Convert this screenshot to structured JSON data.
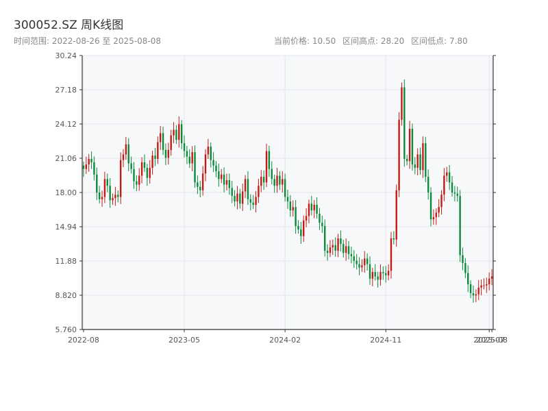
{
  "header": {
    "title": "300052.SZ 周K线图",
    "range_label": "时间范围: 2022-08-26 至 2025-08-08",
    "current_price": "当前价格: 10.50",
    "range_high": "区间高点: 28.20",
    "range_low": "区间低点: 7.80"
  },
  "colors": {
    "up": "#c41a16",
    "down": "#0b8a3b",
    "grid": "#e3e6ea",
    "plot_bg": "#f7f8fa",
    "axis": "#333333"
  },
  "chart_data": {
    "type": "candlestick",
    "title": "300052.SZ 周K线图",
    "xlabel": "",
    "ylabel": "",
    "ylim": [
      5.76,
      30.24
    ],
    "y_ticks": [
      "30.24",
      "27.18",
      "24.12",
      "21.06",
      "18.00",
      "14.94",
      "11.88",
      "8.820",
      "5.760"
    ],
    "x_ticks": [
      {
        "label": "2022-08",
        "index": 0
      },
      {
        "label": "2023-05",
        "index": 38
      },
      {
        "label": "2024-02",
        "index": 76
      },
      {
        "label": "2024-11",
        "index": 114
      },
      {
        "label": "2025-07",
        "index": 153
      },
      {
        "label": "2025-08",
        "index": 154
      }
    ],
    "x_count": 155,
    "grid": true,
    "closes": [
      20.1,
      20.5,
      21.0,
      20.7,
      19.6,
      18.0,
      17.4,
      17.6,
      19.2,
      18.6,
      17.3,
      17.5,
      17.8,
      17.6,
      20.9,
      21.4,
      22.3,
      20.6,
      20.1,
      19.0,
      18.7,
      19.5,
      20.7,
      20.2,
      19.3,
      20.2,
      21.3,
      21.0,
      22.5,
      23.3,
      21.8,
      21.1,
      21.8,
      23.1,
      23.6,
      22.7,
      24.1,
      22.4,
      21.7,
      21.2,
      20.6,
      21.6,
      18.9,
      18.5,
      18.2,
      19.7,
      21.4,
      22.1,
      20.9,
      20.4,
      19.9,
      19.2,
      19.6,
      18.7,
      19.1,
      18.4,
      17.7,
      17.2,
      17.9,
      17.0,
      18.1,
      19.2,
      17.4,
      17.1,
      16.9,
      17.6,
      18.6,
      19.4,
      18.9,
      21.7,
      20.1,
      19.2,
      18.6,
      19.5,
      18.7,
      19.2,
      17.6,
      17.2,
      16.4,
      16.7,
      15.0,
      14.7,
      14.1,
      15.5,
      15.9,
      17.0,
      16.4,
      16.9,
      16.1,
      15.3,
      15.0,
      12.8,
      12.6,
      13.1,
      13.3,
      12.8,
      13.9,
      13.4,
      12.6,
      13.2,
      12.5,
      12.3,
      11.9,
      11.6,
      11.3,
      11.5,
      12.1,
      11.6,
      10.3,
      10.9,
      10.5,
      10.2,
      10.9,
      10.8,
      10.6,
      11.0,
      13.9,
      13.8,
      18.2,
      24.5,
      27.4,
      21.0,
      20.8,
      23.7,
      20.5,
      20.2,
      21.4,
      20.0,
      22.4,
      19.4,
      18.0,
      15.6,
      15.8,
      16.2,
      16.7,
      17.8,
      19.5,
      19.8,
      18.9,
      18.0,
      17.9,
      17.7,
      12.4,
      11.7,
      10.8,
      9.8,
      9.0,
      8.8,
      8.9,
      9.5,
      9.7,
      9.7,
      9.8,
      10.3,
      10.5
    ]
  }
}
